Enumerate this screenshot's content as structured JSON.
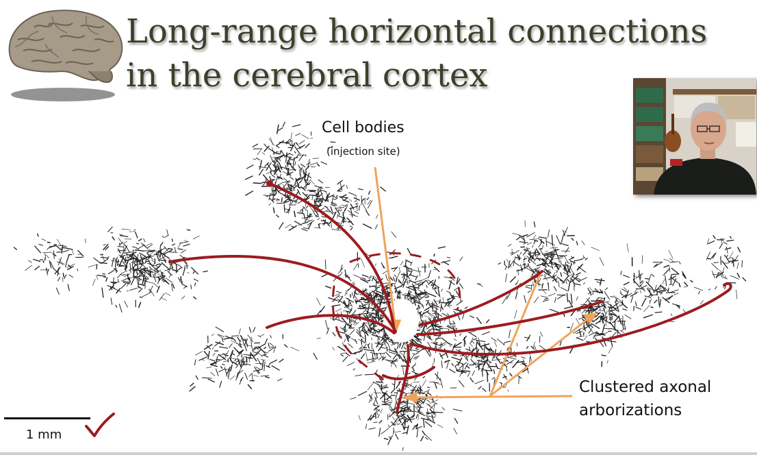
{
  "slide": {
    "title_line1": "Long-range horizontal connections",
    "title_line2": "in the cerebral cortex",
    "labels": {
      "cell_bodies": "Cell bodies",
      "injection_site": "(injection site)",
      "clustered_line1": "Clustered axonal",
      "clustered_line2": "arborizations"
    },
    "scale_bar": {
      "text": "1 mm"
    },
    "icons": [
      "brain-image",
      "check-mark-icon",
      "presenter-webcam"
    ],
    "colors": {
      "title": "#39412a",
      "annotation_red": "#9b1c20",
      "annotation_orange": "#f0a35a",
      "axon_ink": "#222222"
    }
  }
}
